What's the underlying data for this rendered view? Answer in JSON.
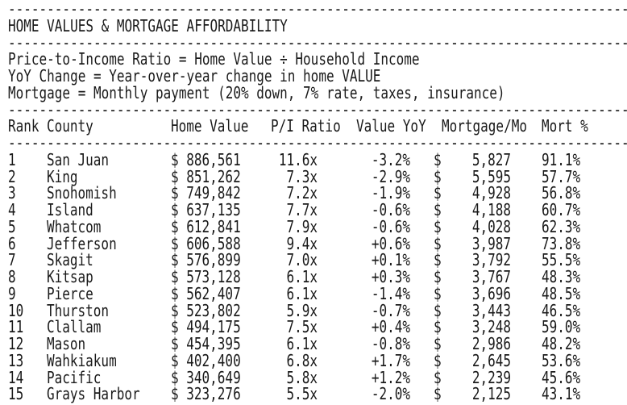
{
  "title": "HOME VALUES & MORTGAGE AFFORDABILITY",
  "divider": "--------------------------------------------------------------------------------",
  "notes": [
    "Price-to-Income Ratio = Home Value ÷ Household Income",
    "YoY Change = Year-over-year change in home VALUE",
    "Mortgage = Monthly payment (20% down, 7% rate, taxes, insurance)"
  ],
  "colors": {
    "text": "#1a1a1a",
    "background": "#ffffff"
  },
  "table": {
    "headers": {
      "rank": "Rank",
      "county": "County",
      "home_value": "Home Value",
      "pi_ratio": "P/I Ratio",
      "value_yoy": "Value YoY",
      "mortgage_mo": "Mortgage/Mo",
      "mort_pct": "Mort %"
    },
    "currency_symbol": "$",
    "rows": [
      {
        "rank": "1",
        "county": "San Juan",
        "home_value": "$ 886,561",
        "pi_ratio": "11.6x",
        "value_yoy": "-3.2%",
        "mortgage": "5,827",
        "mort_pct": "91.1%"
      },
      {
        "rank": "2",
        "county": "King",
        "home_value": "$ 851,262",
        "pi_ratio": "7.3x",
        "value_yoy": "-2.9%",
        "mortgage": "5,595",
        "mort_pct": "57.7%"
      },
      {
        "rank": "3",
        "county": "Snohomish",
        "home_value": "$ 749,842",
        "pi_ratio": "7.2x",
        "value_yoy": "-1.9%",
        "mortgage": "4,928",
        "mort_pct": "56.8%"
      },
      {
        "rank": "4",
        "county": "Island",
        "home_value": "$ 637,135",
        "pi_ratio": "7.7x",
        "value_yoy": "-0.6%",
        "mortgage": "4,188",
        "mort_pct": "60.7%"
      },
      {
        "rank": "5",
        "county": "Whatcom",
        "home_value": "$ 612,841",
        "pi_ratio": "7.9x",
        "value_yoy": "-0.6%",
        "mortgage": "4,028",
        "mort_pct": "62.3%"
      },
      {
        "rank": "6",
        "county": "Jefferson",
        "home_value": "$ 606,588",
        "pi_ratio": "9.4x",
        "value_yoy": "+0.6%",
        "mortgage": "3,987",
        "mort_pct": "73.8%"
      },
      {
        "rank": "7",
        "county": "Skagit",
        "home_value": "$ 576,899",
        "pi_ratio": "7.0x",
        "value_yoy": "+0.1%",
        "mortgage": "3,792",
        "mort_pct": "55.5%"
      },
      {
        "rank": "8",
        "county": "Kitsap",
        "home_value": "$ 573,128",
        "pi_ratio": "6.1x",
        "value_yoy": "+0.3%",
        "mortgage": "3,767",
        "mort_pct": "48.3%"
      },
      {
        "rank": "9",
        "county": "Pierce",
        "home_value": "$ 562,407",
        "pi_ratio": "6.1x",
        "value_yoy": "-1.4%",
        "mortgage": "3,696",
        "mort_pct": "48.5%"
      },
      {
        "rank": "10",
        "county": "Thurston",
        "home_value": "$ 523,802",
        "pi_ratio": "5.9x",
        "value_yoy": "-0.7%",
        "mortgage": "3,443",
        "mort_pct": "46.5%"
      },
      {
        "rank": "11",
        "county": "Clallam",
        "home_value": "$ 494,175",
        "pi_ratio": "7.5x",
        "value_yoy": "+0.4%",
        "mortgage": "3,248",
        "mort_pct": "59.0%"
      },
      {
        "rank": "12",
        "county": "Mason",
        "home_value": "$ 454,395",
        "pi_ratio": "6.1x",
        "value_yoy": "-0.8%",
        "mortgage": "2,986",
        "mort_pct": "48.2%"
      },
      {
        "rank": "13",
        "county": "Wahkiakum",
        "home_value": "$ 402,400",
        "pi_ratio": "6.8x",
        "value_yoy": "+1.7%",
        "mortgage": "2,645",
        "mort_pct": "53.6%"
      },
      {
        "rank": "14",
        "county": "Pacific",
        "home_value": "$ 340,649",
        "pi_ratio": "5.8x",
        "value_yoy": "+1.2%",
        "mortgage": "2,239",
        "mort_pct": "45.6%"
      },
      {
        "rank": "15",
        "county": "Grays Harbor",
        "home_value": "$ 323,276",
        "pi_ratio": "5.5x",
        "value_yoy": "-2.0%",
        "mortgage": "2,125",
        "mort_pct": "43.1%"
      }
    ]
  }
}
